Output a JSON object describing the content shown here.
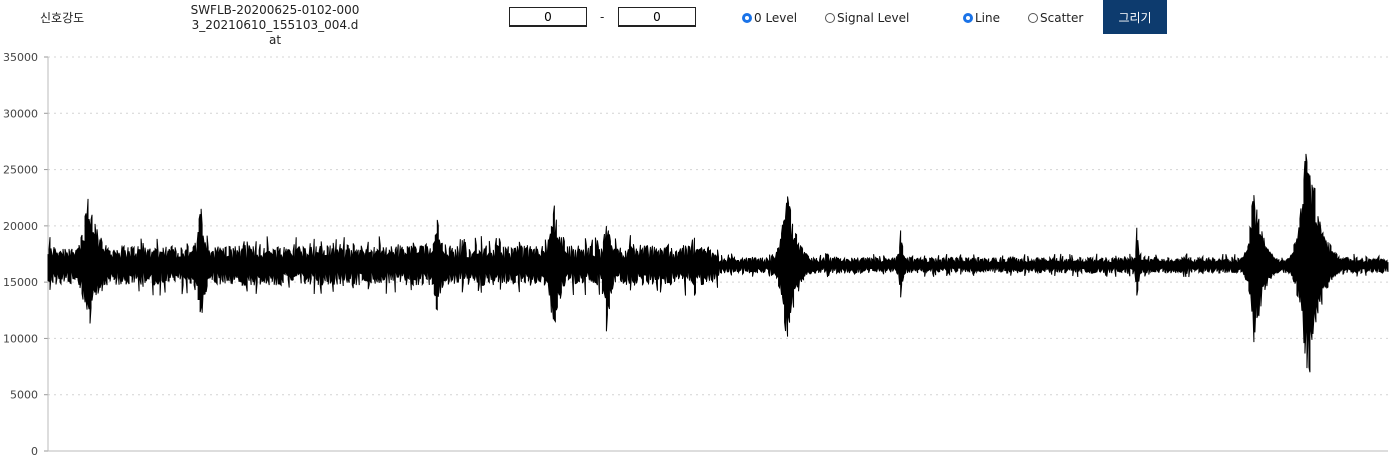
{
  "toolbar": {
    "strength_label": "신호강도",
    "file_name": "SWFLB-20200625-0102-0003_20210610_155103_004.dat",
    "range_from": "0",
    "range_separator": "-",
    "range_to": "0",
    "level_options": [
      {
        "label": "0 Level",
        "checked": true
      },
      {
        "label": "Signal Level",
        "checked": false
      }
    ],
    "mode_options": [
      {
        "label": "Line",
        "checked": true
      },
      {
        "label": "Scatter",
        "checked": false
      }
    ],
    "draw_label": "그리기",
    "accent_color": "#0d3b6e",
    "radio_color": "#1a73e8"
  },
  "chart_data": {
    "type": "line",
    "title": "",
    "xlabel": "",
    "ylabel": "",
    "ylim": [
      0,
      35000
    ],
    "yticks": [
      "0",
      "5000",
      "10000",
      "15000",
      "20000",
      "25000",
      "30000",
      "35000"
    ],
    "grid": "horizontal dotted",
    "line_color": "#000000",
    "baseline": 16500,
    "x_samples": 1340,
    "noise_segments": [
      {
        "start": 0,
        "end": 670,
        "amplitude": 1800
      },
      {
        "start": 670,
        "end": 1340,
        "amplitude": 700
      }
    ],
    "bursts": [
      {
        "index": 40,
        "peak_max": 23000,
        "peak_min": 10400,
        "width": 30
      },
      {
        "index": 152,
        "peak_max": 22600,
        "peak_min": 9200,
        "width": 12
      },
      {
        "index": 388,
        "peak_max": 21500,
        "peak_min": 11500,
        "width": 16
      },
      {
        "index": 505,
        "peak_max": 22900,
        "peak_min": 10000,
        "width": 20
      },
      {
        "index": 558,
        "peak_max": 22200,
        "peak_min": 9500,
        "width": 12
      },
      {
        "index": 738,
        "peak_max": 24300,
        "peak_min": 8400,
        "width": 22
      },
      {
        "index": 852,
        "peak_max": 20600,
        "peak_min": 13000,
        "width": 6
      },
      {
        "index": 1088,
        "peak_max": 20300,
        "peak_min": 13200,
        "width": 6
      },
      {
        "index": 1205,
        "peak_max": 24400,
        "peak_min": 8400,
        "width": 20
      },
      {
        "index": 1258,
        "peak_max": 30100,
        "peak_min": 3900,
        "width": 26
      }
    ]
  }
}
